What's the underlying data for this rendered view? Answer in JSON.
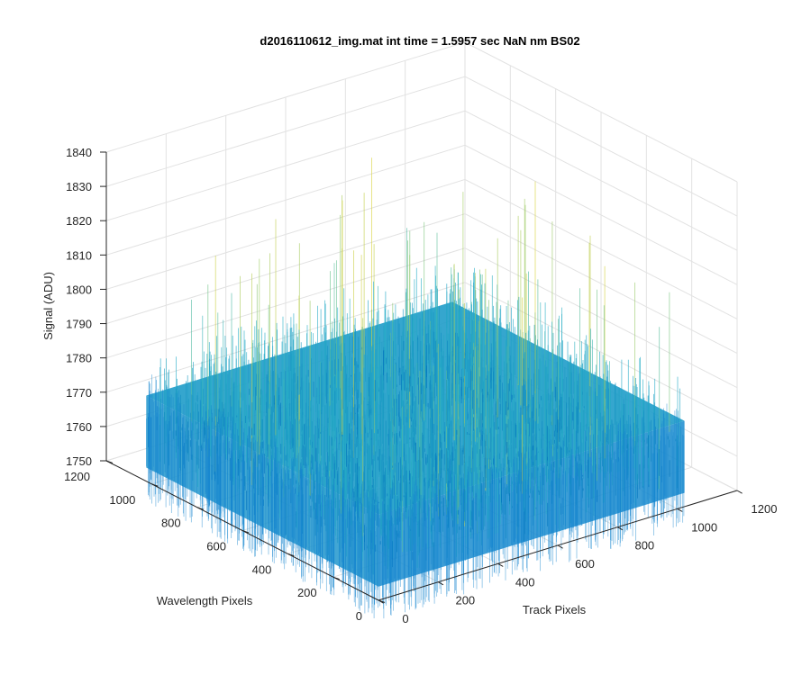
{
  "chart_data": {
    "type": "surface3d",
    "title": "d2016110612_img.mat int time = 1.5957 sec  NaN nm BS02",
    "xlabel": "Track Pixels",
    "ylabel": "Wavelength Pixels",
    "zlabel": "Signal (ADU)",
    "xlim": [
      0,
      1200
    ],
    "ylim": [
      0,
      1200
    ],
    "zlim": [
      1750,
      1840
    ],
    "x_ticks": [
      "0",
      "200",
      "400",
      "600",
      "800",
      "1000",
      "1200"
    ],
    "y_ticks": [
      "0",
      "200",
      "400",
      "600",
      "800",
      "1000",
      "1200"
    ],
    "z_ticks": [
      "1750",
      "1760",
      "1770",
      "1780",
      "1790",
      "1800",
      "1810",
      "1820",
      "1830",
      "1840"
    ],
    "surface": {
      "x_range": [
        0,
        1024
      ],
      "y_range": [
        0,
        1024
      ],
      "z_mean": 1775,
      "z_typical_range": [
        1760,
        1795
      ],
      "z_peak_max": 1825
    },
    "grid": true,
    "colormap": "parula",
    "colors": {
      "low": "#0072bd",
      "mid": "#2ab0c8",
      "high": "#d9d23a",
      "grid": "#e2e2e2",
      "axis": "#262626"
    }
  }
}
